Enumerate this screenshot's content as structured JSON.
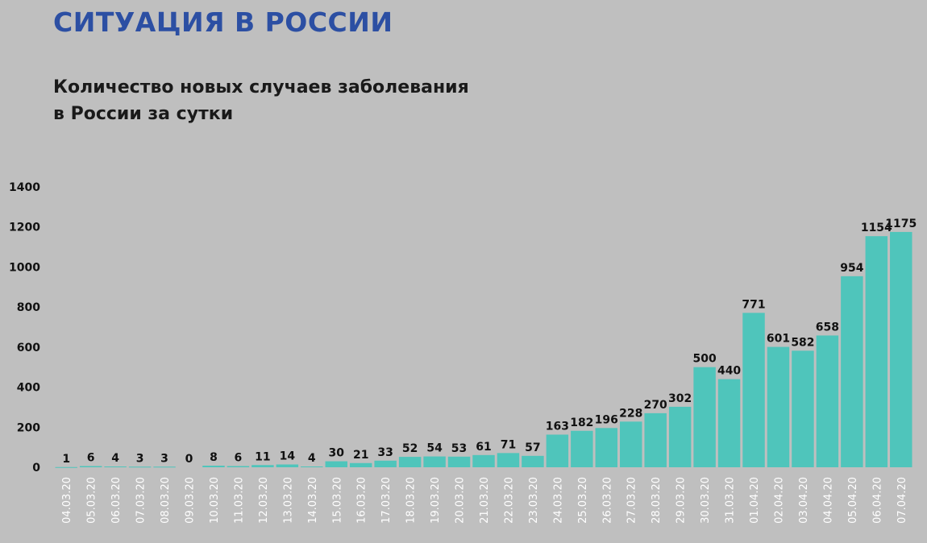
{
  "header": {
    "section_title": "СИТУАЦИЯ В РОССИИ",
    "chart_title_line1": "Количество новых случаев заболевания",
    "chart_title_line2": "в России за сутки"
  },
  "colors": {
    "background": "#bfbfbf",
    "bar": "#4fc5bb",
    "section_title": "#2c4fa3"
  },
  "chart_data": {
    "type": "bar",
    "title": "Количество новых случаев заболевания в России за сутки",
    "xlabel": "",
    "ylabel": "",
    "ylim": [
      0,
      1400
    ],
    "yticks": [
      0,
      200,
      400,
      600,
      800,
      1000,
      1200,
      1400
    ],
    "grid": false,
    "data_labels": true,
    "categories": [
      "04.03.20",
      "05.03.20",
      "06.03.20",
      "07.03.20",
      "08.03.20",
      "09.03.20",
      "10.03.20",
      "11.03.20",
      "12.03.20",
      "13.03.20",
      "14.03.20",
      "15.03.20",
      "16.03.20",
      "17.03.20",
      "18.03.20",
      "19.03.20",
      "20.03.20",
      "21.03.20",
      "22.03.20",
      "23.03.20",
      "24.03.20",
      "25.03.20",
      "26.03.20",
      "27.03.20",
      "28.03.20",
      "29.03.20",
      "30.03.20",
      "31.03.20",
      "01.04.20",
      "02.04.20",
      "03.04.20",
      "04.04.20",
      "05.04.20",
      "06.04.20",
      "07.04.20"
    ],
    "values": [
      1,
      6,
      4,
      3,
      3,
      0,
      8,
      6,
      11,
      14,
      4,
      30,
      21,
      33,
      52,
      54,
      53,
      61,
      71,
      57,
      163,
      182,
      196,
      228,
      270,
      302,
      500,
      440,
      771,
      601,
      582,
      658,
      954,
      1154,
      1175
    ]
  }
}
